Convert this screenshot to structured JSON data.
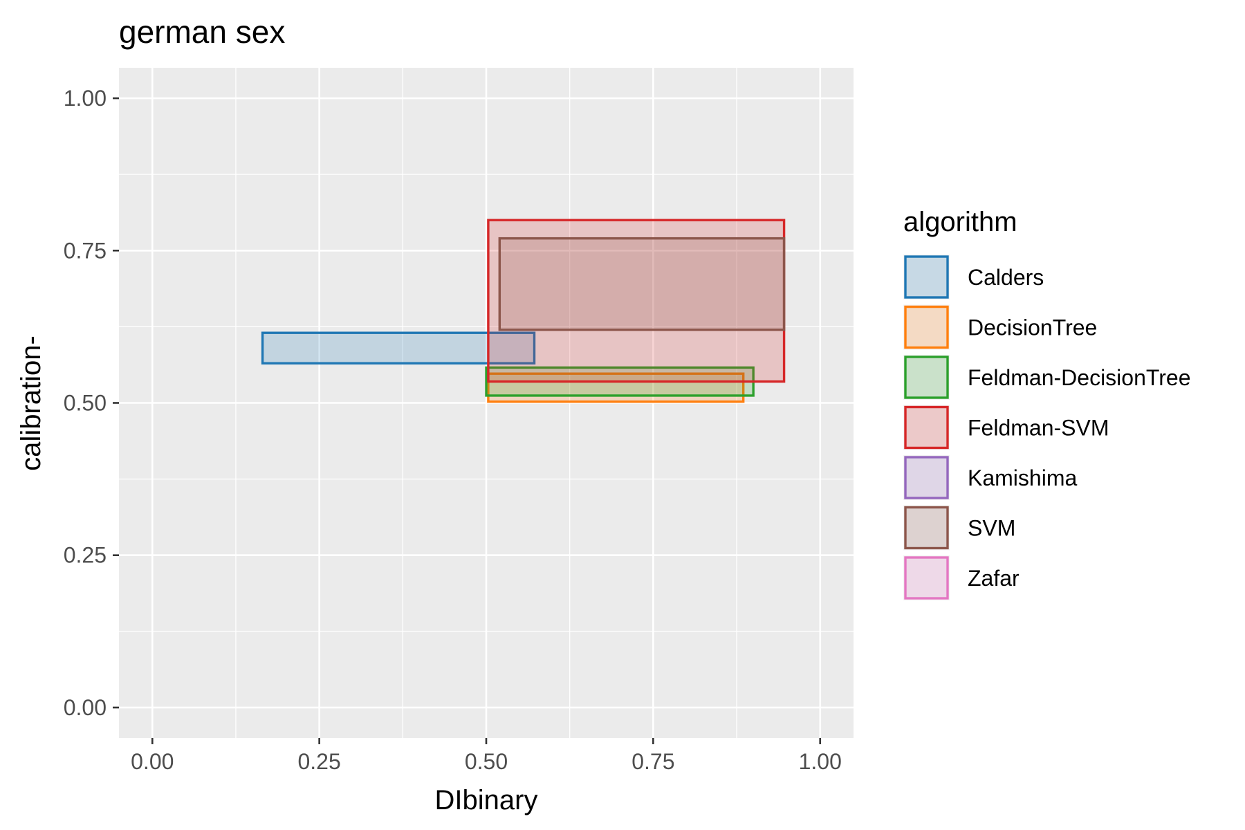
{
  "chart_data": {
    "type": "rect",
    "title": "german sex",
    "xlabel": "DIbinary",
    "ylabel": "calibration-",
    "xlim": [
      -0.05,
      1.05
    ],
    "ylim": [
      -0.05,
      1.05
    ],
    "x_ticks": [
      0.0,
      0.25,
      0.5,
      0.75,
      1.0
    ],
    "x_tick_labels": [
      "0.00",
      "0.25",
      "0.50",
      "0.75",
      "1.00"
    ],
    "y_ticks": [
      0.0,
      0.25,
      0.5,
      0.75,
      1.0
    ],
    "y_tick_labels": [
      "0.00",
      "0.25",
      "0.50",
      "0.75",
      "1.00"
    ],
    "x_minor_ticks": [
      0.125,
      0.375,
      0.625,
      0.875
    ],
    "y_minor_ticks": [
      0.125,
      0.375,
      0.625,
      0.875
    ],
    "grid": true,
    "legend": {
      "title": "algorithm",
      "position": "right",
      "entries": [
        "Calders",
        "DecisionTree",
        "Feldman-DecisionTree",
        "Feldman-SVM",
        "Kamishima",
        "SVM",
        "Zafar"
      ]
    },
    "series": [
      {
        "name": "Calders",
        "color": "#1f77b4",
        "xmin": 0.165,
        "xmax": 0.572,
        "ymin": 0.565,
        "ymax": 0.615
      },
      {
        "name": "DecisionTree",
        "color": "#ff7f0e",
        "xmin": 0.503,
        "xmax": 0.885,
        "ymin": 0.502,
        "ymax": 0.548
      },
      {
        "name": "Feldman-DecisionTree",
        "color": "#2ca02c",
        "xmin": 0.5,
        "xmax": 0.9,
        "ymin": 0.512,
        "ymax": 0.558
      },
      {
        "name": "Feldman-SVM",
        "color": "#d62728",
        "xmin": 0.503,
        "xmax": 0.946,
        "ymin": 0.535,
        "ymax": 0.8
      },
      {
        "name": "Kamishima",
        "color": "#9467bd"
      },
      {
        "name": "SVM",
        "color": "#8c564b",
        "xmin": 0.52,
        "xmax": 0.946,
        "ymin": 0.62,
        "ymax": 0.77
      },
      {
        "name": "Zafar",
        "color": "#e377c2"
      }
    ]
  }
}
